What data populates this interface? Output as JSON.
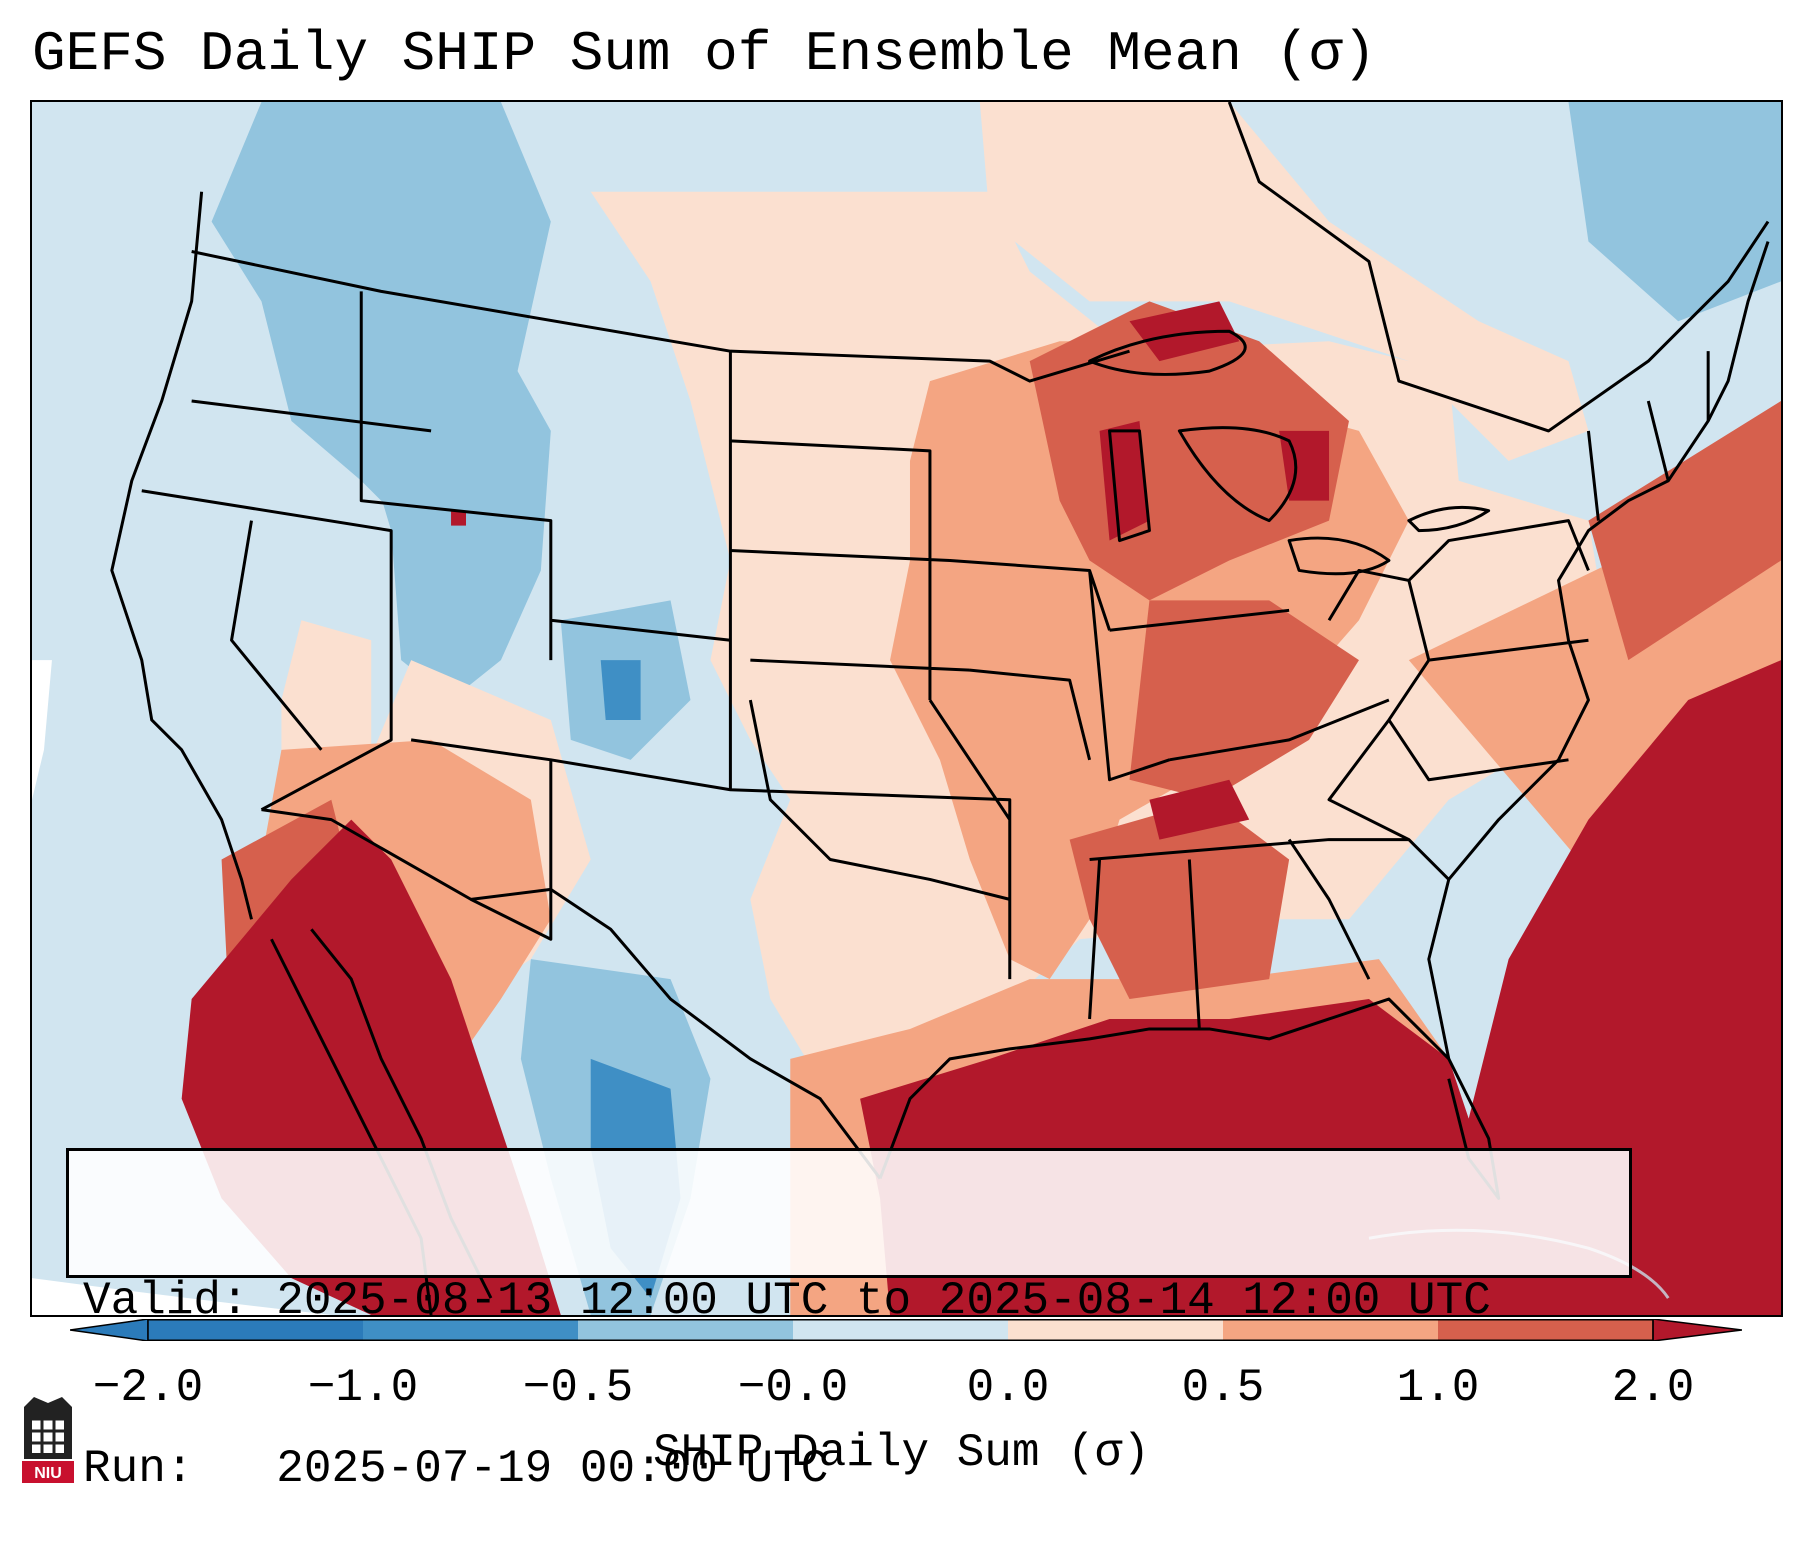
{
  "title": "GEFS Daily SHIP Sum of Ensemble Mean (σ)",
  "map": {
    "type": "shaded anomaly map",
    "region": "Contiguous United States",
    "variable": "SHIP daily sum of ensemble mean (σ)",
    "notable_features": [
      "Strong positive (dark red) anomalies over Gulf of Mexico, Southeast coast and western Atlantic",
      "Strong positive anomalies over northern Mexico / Baja",
      "Positive anomalies over Great Lakes, Midwest and Ohio Valley",
      "Negative (blue) anomalies over Northwest, Idaho, Utah, Colorado and west Texas"
    ]
  },
  "info": {
    "valid_line": "Valid: 2025-08-13 12:00 UTC to 2025-08-14 12:00 UTC",
    "run_line": "Run:   2025-07-19 00:00 UTC"
  },
  "colorbar": {
    "label": "SHIP Daily Sum (σ)",
    "ticks": [
      "−2.0",
      "−1.0",
      "−0.5",
      "−0.0",
      "0.0",
      "0.5",
      "1.0",
      "2.0"
    ],
    "colors": [
      "#2b7bba",
      "#3f8fc5",
      "#92c4de",
      "#d1e5f0",
      "#fbe0d0",
      "#f4a582",
      "#d6604d",
      "#b2182b"
    ],
    "extend": "both"
  },
  "logo": {
    "label": "NIU",
    "colors": {
      "red": "#c8102e",
      "black": "#222222"
    }
  }
}
